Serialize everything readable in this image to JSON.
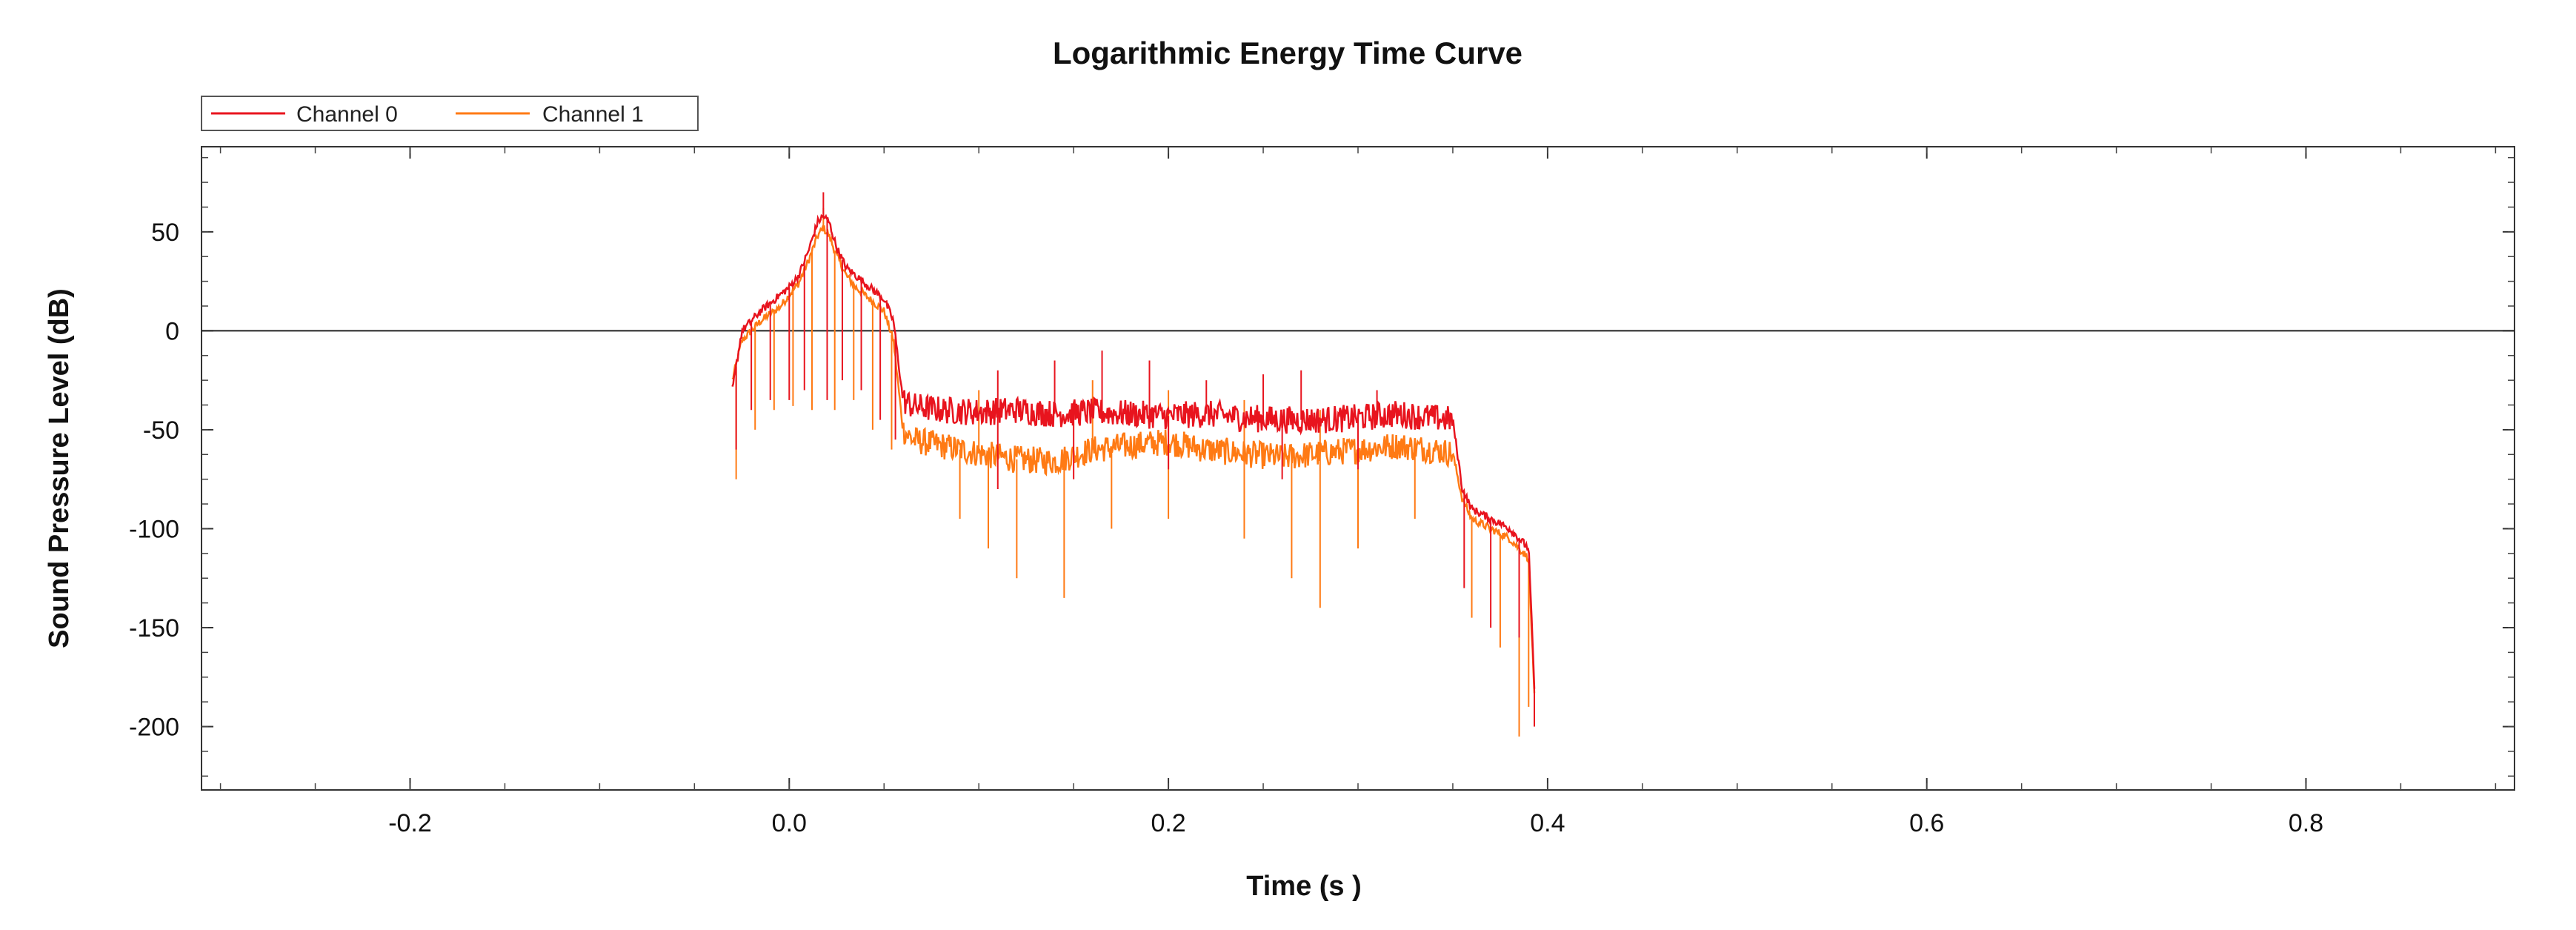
{
  "chart_data": {
    "type": "line",
    "title": "Logarithmic Energy Time Curve",
    "xlabel": "Time (s )",
    "ylabel": "Sound Pressure Level (dB)",
    "xlim": [
      -0.31,
      0.91
    ],
    "ylim": [
      -232,
      93
    ],
    "xticks": [
      -0.2,
      0.0,
      0.2,
      0.4,
      0.6,
      0.8
    ],
    "xtick_labels": [
      "-0.2",
      "0.0",
      "0.2",
      "0.4",
      "0.6",
      "0.8"
    ],
    "yticks": [
      50,
      0,
      -50,
      -100,
      -150,
      -200
    ],
    "ytick_labels": [
      "50",
      "0",
      "-50",
      "-100",
      "-150",
      "-200"
    ],
    "zero_line": 0,
    "grid": false,
    "legend": "top-left",
    "series": [
      {
        "name": "Channel 0",
        "color": "#e8141e",
        "envelope": [
          [
            -0.03,
            -30
          ],
          [
            -0.025,
            0
          ],
          [
            -0.015,
            10
          ],
          [
            -0.005,
            18
          ],
          [
            0.0,
            22
          ],
          [
            0.005,
            28
          ],
          [
            0.01,
            40
          ],
          [
            0.015,
            55
          ],
          [
            0.018,
            58
          ],
          [
            0.021,
            55
          ],
          [
            0.025,
            42
          ],
          [
            0.03,
            32
          ],
          [
            0.035,
            28
          ],
          [
            0.04,
            24
          ],
          [
            0.045,
            20
          ],
          [
            0.05,
            16
          ],
          [
            0.055,
            5
          ],
          [
            0.06,
            -35
          ],
          [
            0.065,
            -38
          ],
          [
            0.08,
            -40
          ],
          [
            0.1,
            -41
          ],
          [
            0.12,
            -40
          ],
          [
            0.14,
            -42
          ],
          [
            0.16,
            -41
          ],
          [
            0.18,
            -42
          ],
          [
            0.2,
            -43
          ],
          [
            0.22,
            -42
          ],
          [
            0.24,
            -44
          ],
          [
            0.26,
            -45
          ],
          [
            0.28,
            -45
          ],
          [
            0.3,
            -44
          ],
          [
            0.32,
            -42
          ],
          [
            0.34,
            -44
          ],
          [
            0.35,
            -45
          ],
          [
            0.355,
            -80
          ],
          [
            0.36,
            -90
          ],
          [
            0.37,
            -95
          ],
          [
            0.38,
            -100
          ],
          [
            0.39,
            -110
          ],
          [
            0.393,
            -180
          ]
        ],
        "dips": [
          [
            -0.028,
            -60
          ],
          [
            -0.02,
            -40
          ],
          [
            -0.01,
            -35
          ],
          [
            0.0,
            -35
          ],
          [
            0.008,
            -30
          ],
          [
            0.02,
            -35
          ],
          [
            0.028,
            -25
          ],
          [
            0.038,
            -30
          ],
          [
            0.048,
            -45
          ],
          [
            0.056,
            -55
          ],
          [
            0.11,
            -80
          ],
          [
            0.15,
            -75
          ],
          [
            0.2,
            -70
          ],
          [
            0.26,
            -75
          ],
          [
            0.3,
            -70
          ],
          [
            0.356,
            -130
          ],
          [
            0.37,
            -150
          ],
          [
            0.385,
            -155
          ],
          [
            0.393,
            -200
          ]
        ],
        "spikes": [
          [
            0.018,
            70
          ],
          [
            0.11,
            -20
          ],
          [
            0.14,
            -15
          ],
          [
            0.165,
            -10
          ],
          [
            0.19,
            -15
          ],
          [
            0.22,
            -25
          ],
          [
            0.25,
            -22
          ],
          [
            0.27,
            -20
          ],
          [
            0.31,
            -30
          ]
        ]
      },
      {
        "name": "Channel 1",
        "color": "#ff7a14",
        "envelope": [
          [
            -0.03,
            -25
          ],
          [
            -0.025,
            -5
          ],
          [
            -0.015,
            5
          ],
          [
            -0.005,
            12
          ],
          [
            0.0,
            18
          ],
          [
            0.005,
            24
          ],
          [
            0.01,
            35
          ],
          [
            0.015,
            48
          ],
          [
            0.018,
            52
          ],
          [
            0.021,
            48
          ],
          [
            0.025,
            38
          ],
          [
            0.03,
            28
          ],
          [
            0.035,
            22
          ],
          [
            0.04,
            18
          ],
          [
            0.045,
            14
          ],
          [
            0.05,
            10
          ],
          [
            0.055,
            -5
          ],
          [
            0.06,
            -50
          ],
          [
            0.065,
            -55
          ],
          [
            0.08,
            -58
          ],
          [
            0.1,
            -62
          ],
          [
            0.12,
            -65
          ],
          [
            0.14,
            -66
          ],
          [
            0.16,
            -60
          ],
          [
            0.18,
            -58
          ],
          [
            0.2,
            -56
          ],
          [
            0.22,
            -60
          ],
          [
            0.24,
            -62
          ],
          [
            0.26,
            -64
          ],
          [
            0.28,
            -62
          ],
          [
            0.3,
            -60
          ],
          [
            0.32,
            -58
          ],
          [
            0.34,
            -60
          ],
          [
            0.35,
            -62
          ],
          [
            0.355,
            -85
          ],
          [
            0.36,
            -95
          ],
          [
            0.37,
            -100
          ],
          [
            0.38,
            -105
          ],
          [
            0.39,
            -115
          ],
          [
            0.393,
            -185
          ]
        ],
        "dips": [
          [
            -0.028,
            -75
          ],
          [
            -0.018,
            -50
          ],
          [
            -0.008,
            -40
          ],
          [
            0.002,
            -38
          ],
          [
            0.012,
            -40
          ],
          [
            0.024,
            -40
          ],
          [
            0.034,
            -35
          ],
          [
            0.044,
            -50
          ],
          [
            0.054,
            -60
          ],
          [
            0.09,
            -95
          ],
          [
            0.105,
            -110
          ],
          [
            0.12,
            -125
          ],
          [
            0.145,
            -135
          ],
          [
            0.17,
            -100
          ],
          [
            0.2,
            -95
          ],
          [
            0.24,
            -105
          ],
          [
            0.265,
            -125
          ],
          [
            0.28,
            -140
          ],
          [
            0.3,
            -110
          ],
          [
            0.33,
            -95
          ],
          [
            0.36,
            -145
          ],
          [
            0.375,
            -160
          ],
          [
            0.385,
            -205
          ],
          [
            0.39,
            -190
          ]
        ],
        "spikes": [
          [
            0.018,
            62
          ],
          [
            0.1,
            -30
          ],
          [
            0.16,
            -25
          ],
          [
            0.2,
            -30
          ],
          [
            0.24,
            -35
          ],
          [
            0.28,
            -40
          ]
        ]
      }
    ]
  }
}
